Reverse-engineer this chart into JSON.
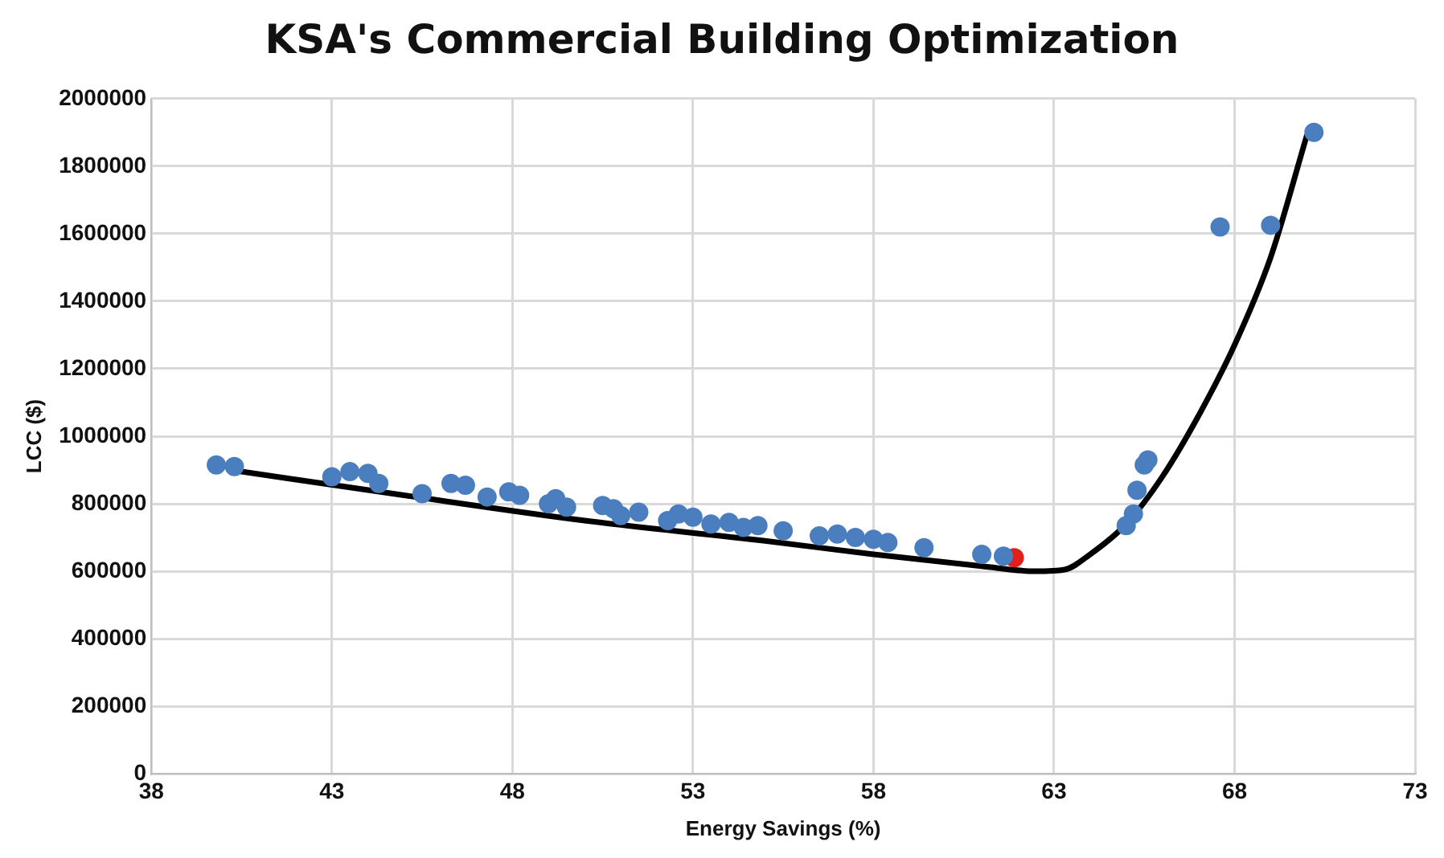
{
  "chart_data": {
    "type": "scatter",
    "title": "KSA's Commercial Building Optimization",
    "xlabel": "Energy Savings (%)",
    "ylabel": "LCC ($)",
    "xlim": [
      38,
      73
    ],
    "xticks": [
      38,
      43,
      48,
      53,
      58,
      63,
      68,
      73
    ],
    "ylim": [
      0,
      2000000
    ],
    "yticks": [
      0,
      200000,
      400000,
      600000,
      800000,
      1000000,
      1200000,
      1400000,
      1600000,
      1800000,
      2000000
    ],
    "grid": true,
    "legend": false,
    "marker": "circle",
    "series": [
      {
        "color": "#4a7ebf",
        "x": [
          39.8,
          40.3,
          43,
          43.5,
          44,
          44.3,
          45.5,
          46.3,
          46.7,
          47.3,
          47.9,
          48.2,
          49,
          49.2,
          49.5,
          50.5,
          50.8,
          51,
          51.5,
          52.3,
          52.6,
          53,
          53.5,
          54,
          54.4,
          54.8,
          55.5,
          56.5,
          57,
          57.5,
          58,
          58.4,
          59.4,
          61,
          61.6,
          65,
          65.2,
          65.3,
          65.5,
          65.6,
          67.6,
          69,
          70.2
        ],
        "values": [
          915000,
          910000,
          880000,
          895000,
          890000,
          860000,
          830000,
          860000,
          855000,
          820000,
          835000,
          825000,
          800000,
          815000,
          790000,
          795000,
          785000,
          765000,
          775000,
          750000,
          770000,
          760000,
          740000,
          745000,
          730000,
          735000,
          720000,
          705000,
          710000,
          700000,
          695000,
          685000,
          670000,
          650000,
          645000,
          735000,
          770000,
          840000,
          915000,
          930000,
          1620000,
          1625000,
          1900000
        ]
      },
      {
        "color": "#e0201c",
        "x": [
          61.9
        ],
        "values": [
          640000
        ]
      },
      {
        "type": "line",
        "color": "#000000",
        "marker": "none",
        "x": [
          40.2,
          45,
          50,
          55,
          58,
          61,
          62.5,
          63.3,
          64,
          65,
          66,
          67,
          68,
          69,
          70
        ],
        "values": [
          900000,
          825000,
          750000,
          690000,
          650000,
          615000,
          600000,
          605000,
          650000,
          740000,
          880000,
          1060000,
          1270000,
          1530000,
          1890000
        ]
      }
    ]
  }
}
